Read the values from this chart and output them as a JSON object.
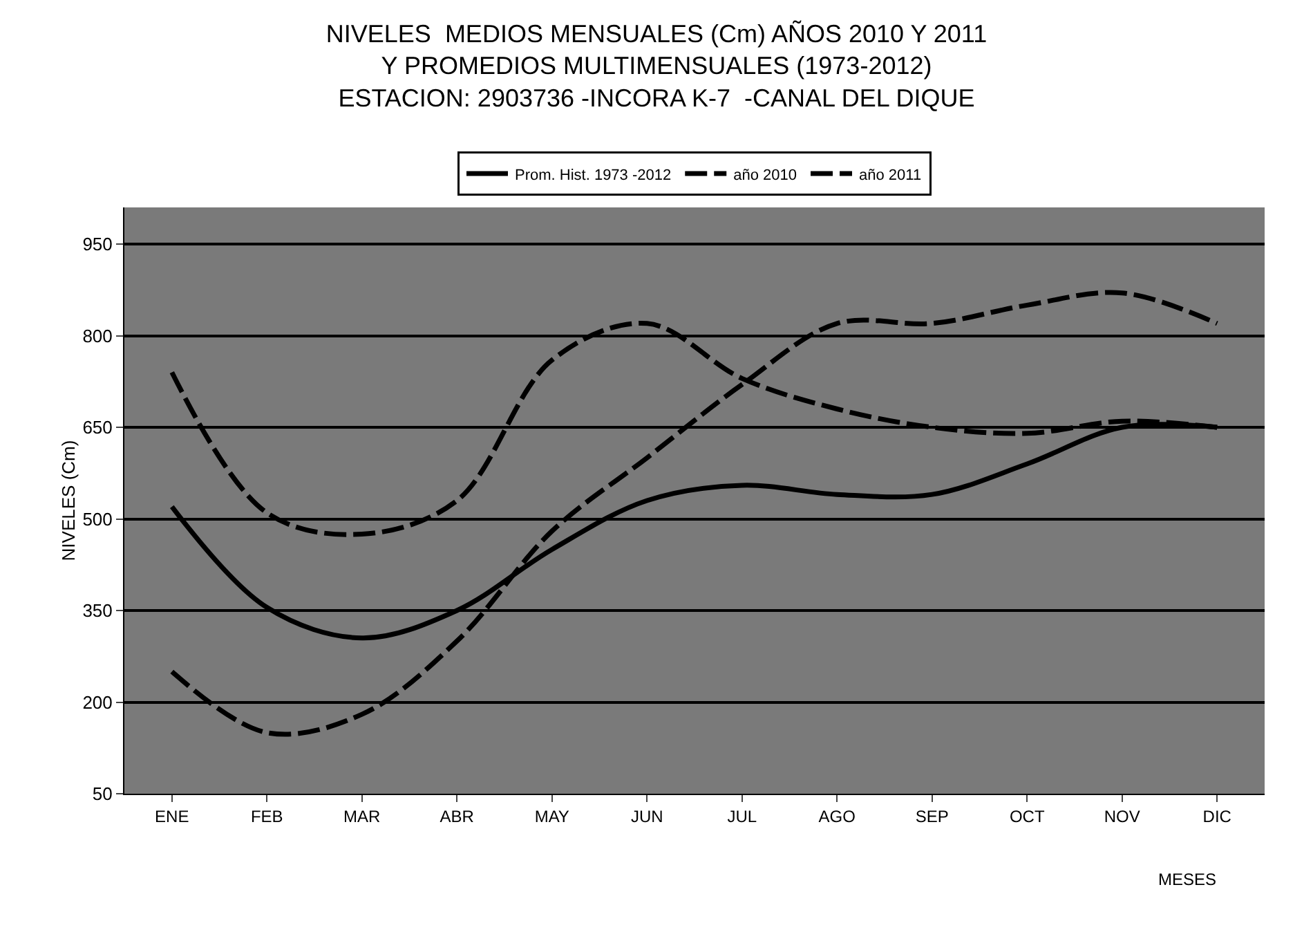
{
  "chart_data": {
    "type": "line",
    "title": "NIVELES  MEDIOS MENSUALES (Cm) AÑOS 2010 Y 2011\nY PROMEDIOS MULTIMENSUALES (1973-2012)\nESTACION: 2903736 -INCORA K-7  -CANAL DEL DIQUE",
    "xlabel": "MESES",
    "ylabel": "NIVELES (Cm)",
    "categories": [
      "ENE",
      "FEB",
      "MAR",
      "ABR",
      "MAY",
      "JUN",
      "JUL",
      "AGO",
      "SEP",
      "OCT",
      "NOV",
      "DIC"
    ],
    "series": [
      {
        "name": "Prom. Hist. 1973 -2012",
        "color": "#000000",
        "line_style": "solid",
        "values": [
          520,
          355,
          305,
          350,
          450,
          530,
          555,
          540,
          540,
          590,
          650,
          650
        ]
      },
      {
        "name": "año 2010",
        "color": "#000000",
        "line_style": "dashed",
        "values": [
          740,
          510,
          475,
          530,
          760,
          820,
          730,
          680,
          650,
          640,
          660,
          650
        ]
      },
      {
        "name": "año 2011",
        "color": "#000000",
        "line_style": "dashed",
        "values": [
          250,
          150,
          180,
          300,
          480,
          600,
          720,
          820,
          820,
          850,
          870,
          820
        ]
      }
    ],
    "ylim": [
      50,
      1010
    ],
    "yticks": [
      50,
      200,
      350,
      500,
      650,
      800,
      950
    ],
    "grid": "y",
    "legend": "top",
    "marker": "none"
  }
}
